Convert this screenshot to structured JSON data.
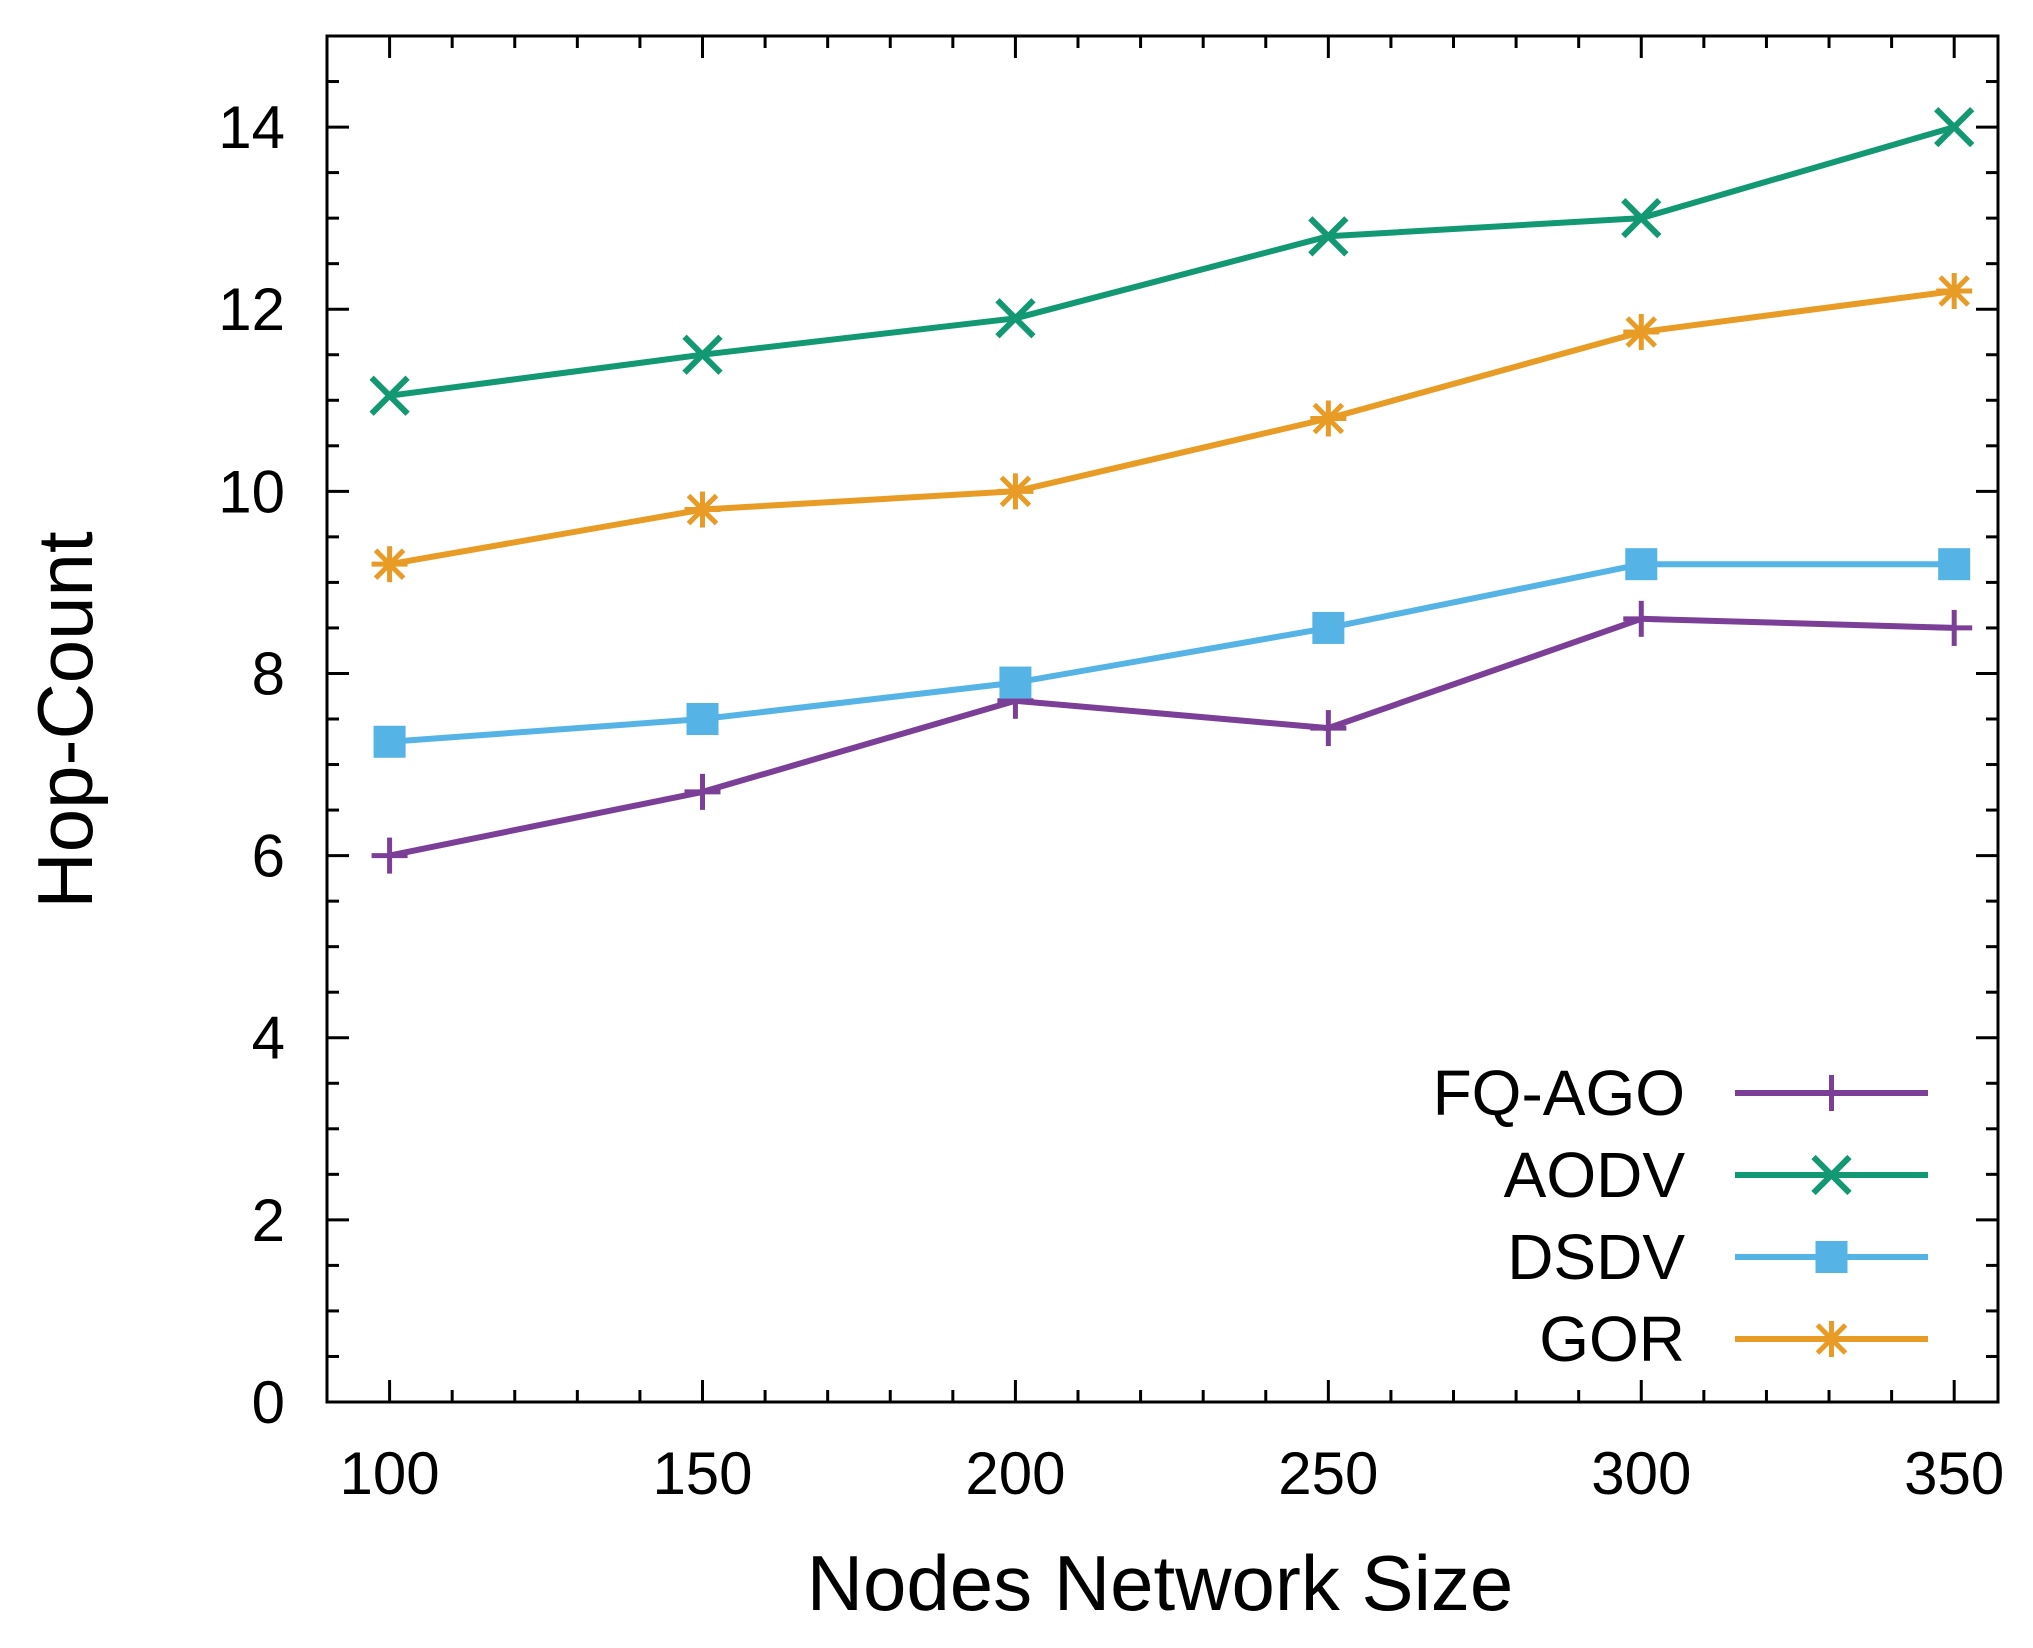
{
  "chart_data": {
    "type": "line",
    "title": "",
    "xlabel": "Nodes Network Size",
    "ylabel": "Hop-Count",
    "x": [
      100,
      150,
      200,
      250,
      300,
      350
    ],
    "xlim": [
      90,
      357
    ],
    "ylim": [
      0,
      15
    ],
    "xticks": [
      100,
      150,
      200,
      250,
      300,
      350
    ],
    "yticks": [
      0,
      2,
      4,
      6,
      8,
      10,
      12,
      14
    ],
    "grid": false,
    "legend_position": "bottom-right",
    "series": [
      {
        "name": "FQ-AGO",
        "color": "#7b3f98",
        "marker": "plus",
        "values": [
          6.0,
          6.7,
          7.7,
          7.4,
          8.6,
          8.5
        ]
      },
      {
        "name": "AODV",
        "color": "#129873",
        "marker": "x",
        "values": [
          11.05,
          11.5,
          11.9,
          12.8,
          13.0,
          14.0
        ]
      },
      {
        "name": "DSDV",
        "color": "#55b3e6",
        "marker": "square",
        "values": [
          7.25,
          7.5,
          7.9,
          8.5,
          9.2,
          9.2
        ]
      },
      {
        "name": "GOR",
        "color": "#e89c25",
        "marker": "star",
        "values": [
          9.2,
          9.8,
          10.0,
          10.8,
          11.75,
          12.2
        ]
      }
    ]
  }
}
